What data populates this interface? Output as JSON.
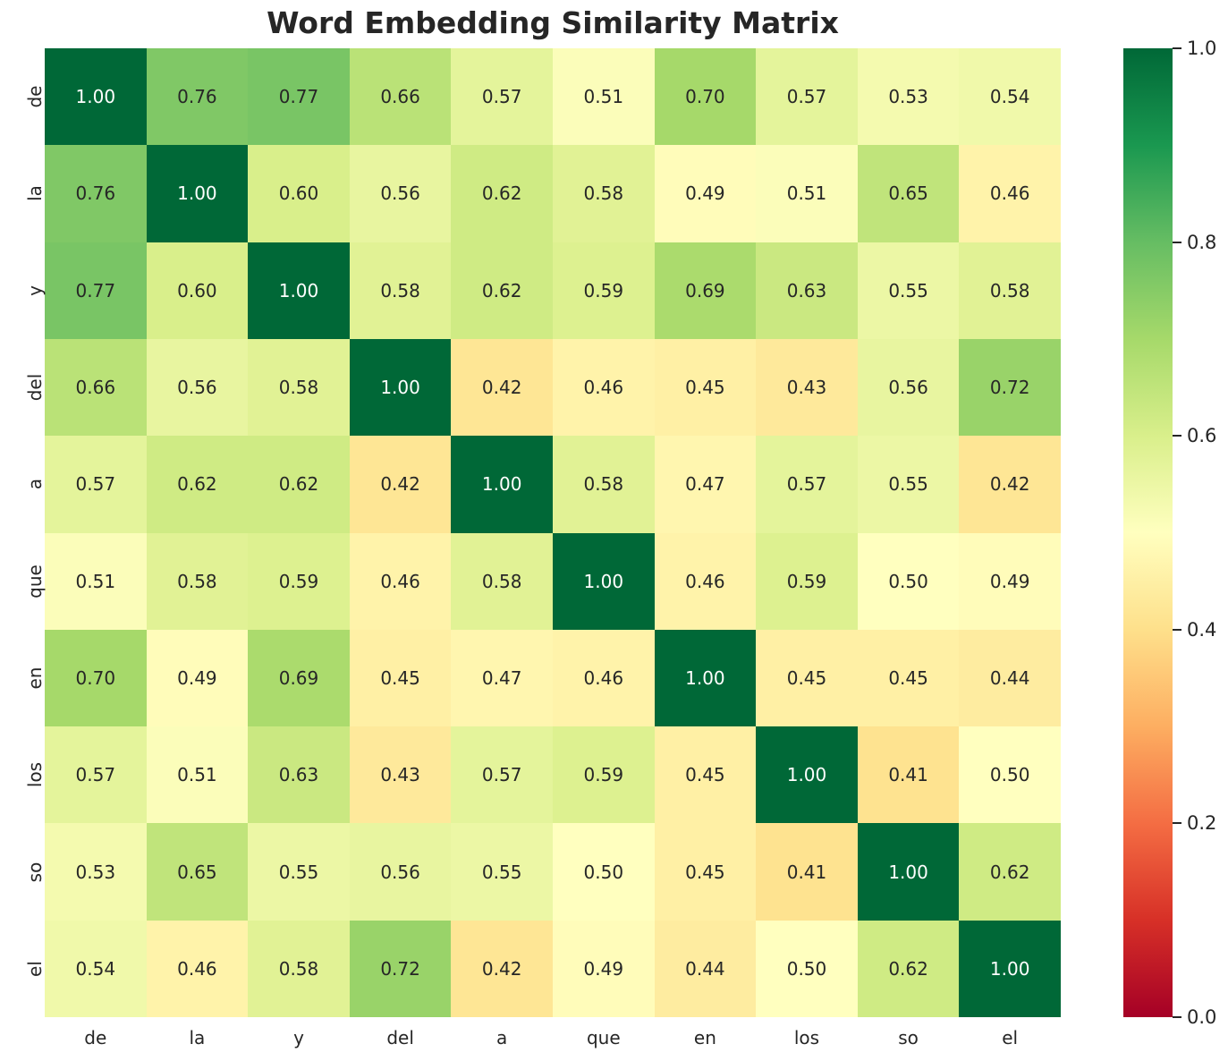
{
  "chart_data": {
    "type": "heatmap",
    "title": "Word Embedding Similarity Matrix",
    "x_labels": [
      "de",
      "la",
      "y",
      "del",
      "a",
      "que",
      "en",
      "los",
      "so",
      "el"
    ],
    "y_labels": [
      "de",
      "la",
      "y",
      "del",
      "a",
      "que",
      "en",
      "los",
      "so",
      "el"
    ],
    "matrix": [
      [
        1.0,
        0.76,
        0.77,
        0.66,
        0.57,
        0.51,
        0.7,
        0.57,
        0.53,
        0.54
      ],
      [
        0.76,
        1.0,
        0.6,
        0.56,
        0.62,
        0.58,
        0.49,
        0.51,
        0.65,
        0.46
      ],
      [
        0.77,
        0.6,
        1.0,
        0.58,
        0.62,
        0.59,
        0.69,
        0.63,
        0.55,
        0.58
      ],
      [
        0.66,
        0.56,
        0.58,
        1.0,
        0.42,
        0.46,
        0.45,
        0.43,
        0.56,
        0.72
      ],
      [
        0.57,
        0.62,
        0.62,
        0.42,
        1.0,
        0.58,
        0.47,
        0.57,
        0.55,
        0.42
      ],
      [
        0.51,
        0.58,
        0.59,
        0.46,
        0.58,
        1.0,
        0.46,
        0.59,
        0.5,
        0.49
      ],
      [
        0.7,
        0.49,
        0.69,
        0.45,
        0.47,
        0.46,
        1.0,
        0.45,
        0.45,
        0.44
      ],
      [
        0.57,
        0.51,
        0.63,
        0.43,
        0.57,
        0.59,
        0.45,
        1.0,
        0.41,
        0.5
      ],
      [
        0.53,
        0.65,
        0.55,
        0.56,
        0.55,
        0.5,
        0.45,
        0.41,
        1.0,
        0.62
      ],
      [
        0.54,
        0.46,
        0.58,
        0.72,
        0.42,
        0.49,
        0.44,
        0.5,
        0.62,
        1.0
      ]
    ],
    "annotation_decimals": 2,
    "vmin": 0.0,
    "vmax": 1.0,
    "grid": false,
    "legend_position": "right-colorbar",
    "colormap": {
      "name": "RdYlGn",
      "stops": [
        "#a50026",
        "#d73027",
        "#f46d43",
        "#fdae61",
        "#fee08b",
        "#ffffbf",
        "#d9ef8b",
        "#a6d96a",
        "#66bd63",
        "#1a9850",
        "#006837"
      ]
    },
    "colorbar": {
      "ticks": [
        {
          "value": 1.0,
          "label": "1.0"
        },
        {
          "value": 0.8,
          "label": "0.8"
        },
        {
          "value": 0.6,
          "label": "0.6"
        },
        {
          "value": 0.4,
          "label": "0.4"
        },
        {
          "value": 0.2,
          "label": "0.2"
        },
        {
          "value": 0.0,
          "label": "0.0"
        }
      ]
    },
    "colors": {
      "background": "#ffffff",
      "title_text": "#262626",
      "tick_text": "#262626",
      "annotation_dark": "#262626",
      "annotation_light": "#ffffff",
      "tick_mark": "#262626"
    }
  }
}
